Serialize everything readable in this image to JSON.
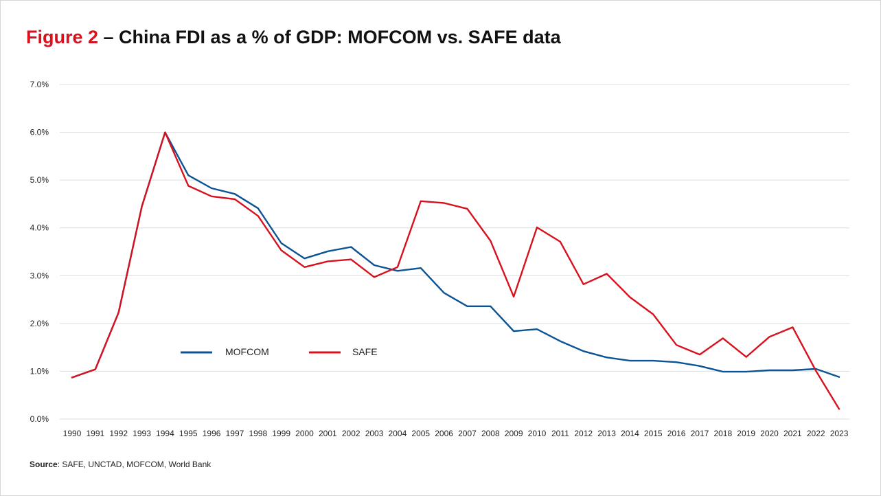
{
  "title": {
    "figure_label": "Figure 2",
    "text": " – China FDI as a % of GDP: MOFCOM vs. SAFE data"
  },
  "source": {
    "label": "Source",
    "text": ": SAFE, UNCTAD, MOFCOM, World Bank"
  },
  "colors": {
    "MOFCOM": "#0b5394",
    "SAFE": "#d7111e",
    "title_accent": "#d7111e",
    "grid": "#dcdcdc"
  },
  "chart_data": {
    "type": "line",
    "title": "Figure 2 – China FDI as a % of GDP: MOFCOM vs. SAFE data",
    "xlabel": "",
    "ylabel": "",
    "ylim": [
      0,
      7
    ],
    "y_ticks": [
      "0.0%",
      "1.0%",
      "2.0%",
      "3.0%",
      "4.0%",
      "5.0%",
      "6.0%",
      "7.0%"
    ],
    "grid": "horizontal",
    "legend_placement": "inside-lower-left",
    "x": [
      "1990",
      "1991",
      "1992",
      "1993",
      "1994",
      "1995",
      "1996",
      "1997",
      "1998",
      "1999",
      "2000",
      "2001",
      "2002",
      "2003",
      "2004",
      "2005",
      "2006",
      "2007",
      "2008",
      "2009",
      "2010",
      "2011",
      "2012",
      "2013",
      "2014",
      "2015",
      "2016",
      "2017",
      "2018",
      "2019",
      "2020",
      "2021",
      "2022",
      "2023"
    ],
    "series": [
      {
        "name": "MOFCOM",
        "color": "#0b5394",
        "values": [
          0.87,
          1.04,
          2.23,
          4.45,
          6.0,
          5.1,
          4.83,
          4.71,
          4.41,
          3.68,
          3.36,
          3.51,
          3.6,
          3.22,
          3.1,
          3.16,
          2.64,
          2.36,
          2.36,
          1.84,
          1.88,
          1.63,
          1.42,
          1.29,
          1.22,
          1.22,
          1.19,
          1.11,
          0.99,
          0.99,
          1.02,
          1.02,
          1.05,
          0.88
        ]
      },
      {
        "name": "SAFE",
        "color": "#d7111e",
        "values": [
          0.87,
          1.04,
          2.23,
          4.45,
          6.0,
          4.88,
          4.66,
          4.6,
          4.25,
          3.53,
          3.18,
          3.3,
          3.34,
          2.97,
          3.18,
          4.56,
          4.52,
          4.4,
          3.73,
          2.56,
          4.01,
          3.71,
          2.82,
          3.04,
          2.55,
          2.19,
          1.55,
          1.35,
          1.69,
          1.3,
          1.72,
          1.92,
          1.01,
          0.21
        ]
      }
    ]
  }
}
